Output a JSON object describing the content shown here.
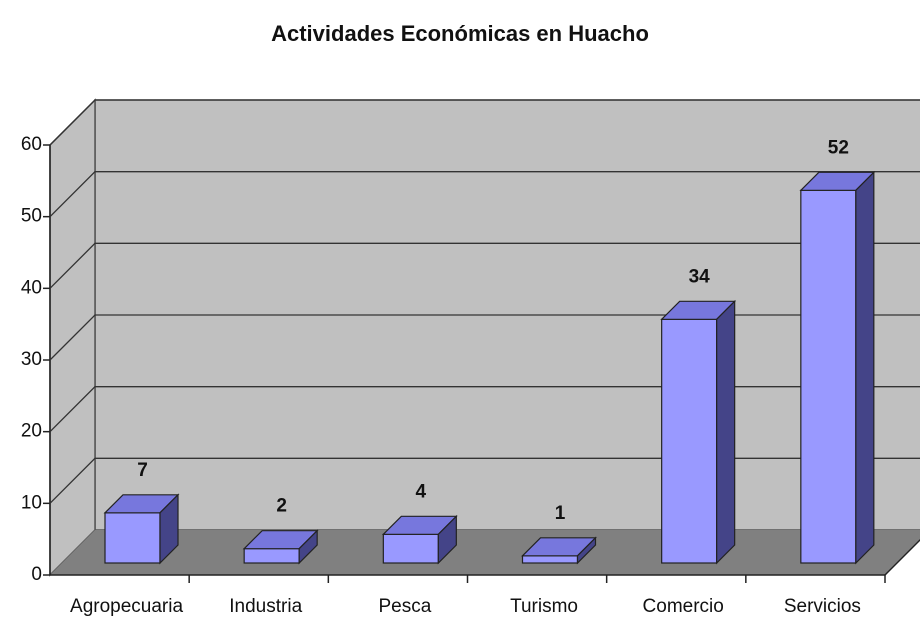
{
  "chart_data": {
    "type": "bar3d",
    "title": "Actividades Económicas en Huacho",
    "categories": [
      "Agropecuaria",
      "Industria",
      "Pesca",
      "Turismo",
      "Comercio",
      "Servicios"
    ],
    "values": [
      7,
      2,
      4,
      1,
      34,
      52
    ],
    "color": "#9999ff",
    "ylim": [
      0,
      60
    ],
    "yticks": [
      0,
      10,
      20,
      30,
      40,
      50,
      60
    ],
    "grid": true
  }
}
